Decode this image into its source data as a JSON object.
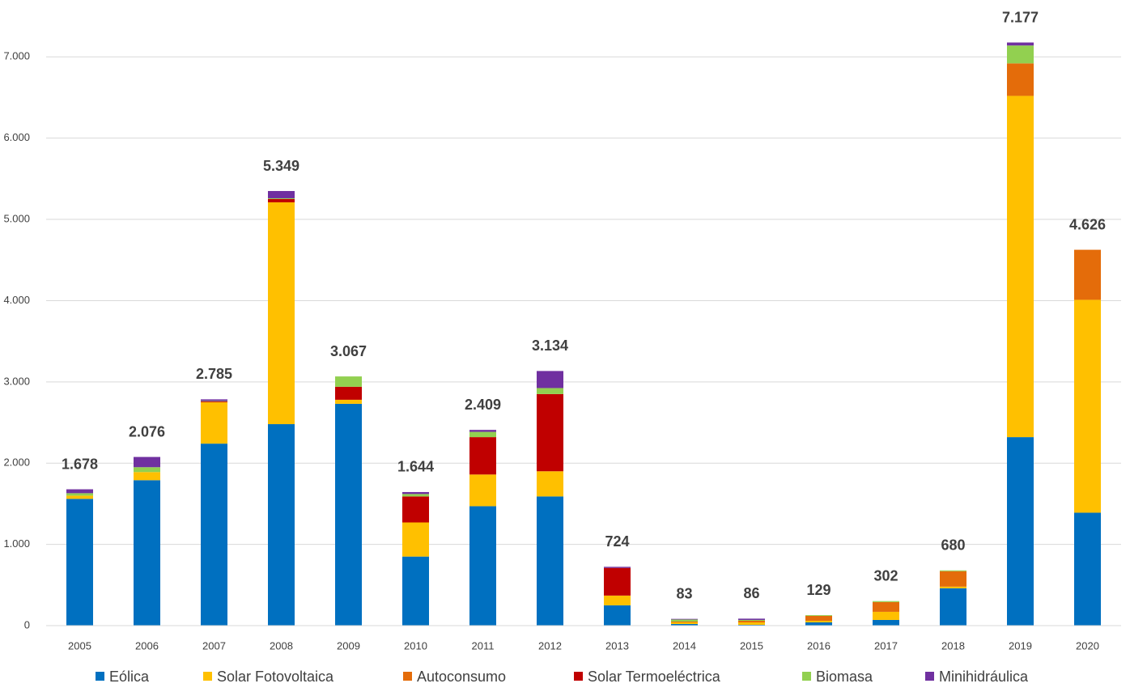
{
  "chart_data": {
    "type": "stacked_bar",
    "categories": [
      "2005",
      "2006",
      "2007",
      "2008",
      "2009",
      "2010",
      "2011",
      "2012",
      "2013",
      "2014",
      "2015",
      "2016",
      "2017",
      "2018",
      "2019",
      "2020"
    ],
    "series": [
      {
        "name": "Eólica",
        "color": "#0070c0",
        "values": [
          1560,
          1790,
          2240,
          2480,
          2730,
          850,
          1470,
          1590,
          250,
          20,
          10,
          40,
          70,
          460,
          2320,
          1390
        ]
      },
      {
        "name": "Solar Fotovoltaica",
        "color": "#ffc000",
        "values": [
          40,
          100,
          510,
          2730,
          50,
          420,
          390,
          310,
          120,
          20,
          30,
          20,
          100,
          20,
          4200,
          2620
        ]
      },
      {
        "name": "Autoconsumo",
        "color": "#e46c0a",
        "values": [
          0,
          0,
          0,
          0,
          0,
          0,
          0,
          0,
          0,
          10,
          20,
          60,
          120,
          190,
          400,
          616
        ]
      },
      {
        "name": "Solar Termoeléctrica",
        "color": "#c00000",
        "values": [
          0,
          0,
          10,
          40,
          160,
          320,
          460,
          950,
          340,
          0,
          0,
          0,
          0,
          0,
          0,
          0
        ]
      },
      {
        "name": "Biomasa",
        "color": "#92d050",
        "values": [
          30,
          60,
          5,
          10,
          127,
          30,
          65,
          74,
          0,
          25,
          10,
          9,
          12,
          10,
          220,
          0
        ]
      },
      {
        "name": "Minihidráulica",
        "color": "#7030a0",
        "values": [
          48,
          126,
          20,
          89,
          0,
          24,
          24,
          210,
          14,
          8,
          16,
          0,
          0,
          0,
          37,
          0
        ]
      }
    ],
    "totals": {
      "values": [
        1678,
        2076,
        2785,
        5349,
        3067,
        1644,
        2409,
        3134,
        724,
        83,
        86,
        129,
        302,
        680,
        7177,
        4626
      ],
      "value_labels": [
        "1.678",
        "2.076",
        "2.785",
        "5.349",
        "3.067",
        "1.644",
        "2.409",
        "3.134",
        "724",
        "83",
        "86",
        "129",
        "302",
        "680",
        "7.177",
        "4.626"
      ]
    },
    "ylim": [
      0,
      7700
    ],
    "yticks": [
      0,
      {
        "value": 1000,
        "label": "1.000"
      },
      {
        "value": 2000,
        "label": "2.000"
      },
      {
        "value": 3000,
        "label": "3.000"
      },
      {
        "value": 4000,
        "label": "4.000"
      },
      {
        "value": 5000,
        "label": "5.000"
      },
      {
        "value": 6000,
        "label": "6.000"
      },
      {
        "value": 7000,
        "label": "7.000"
      }
    ],
    "grid": true
  }
}
